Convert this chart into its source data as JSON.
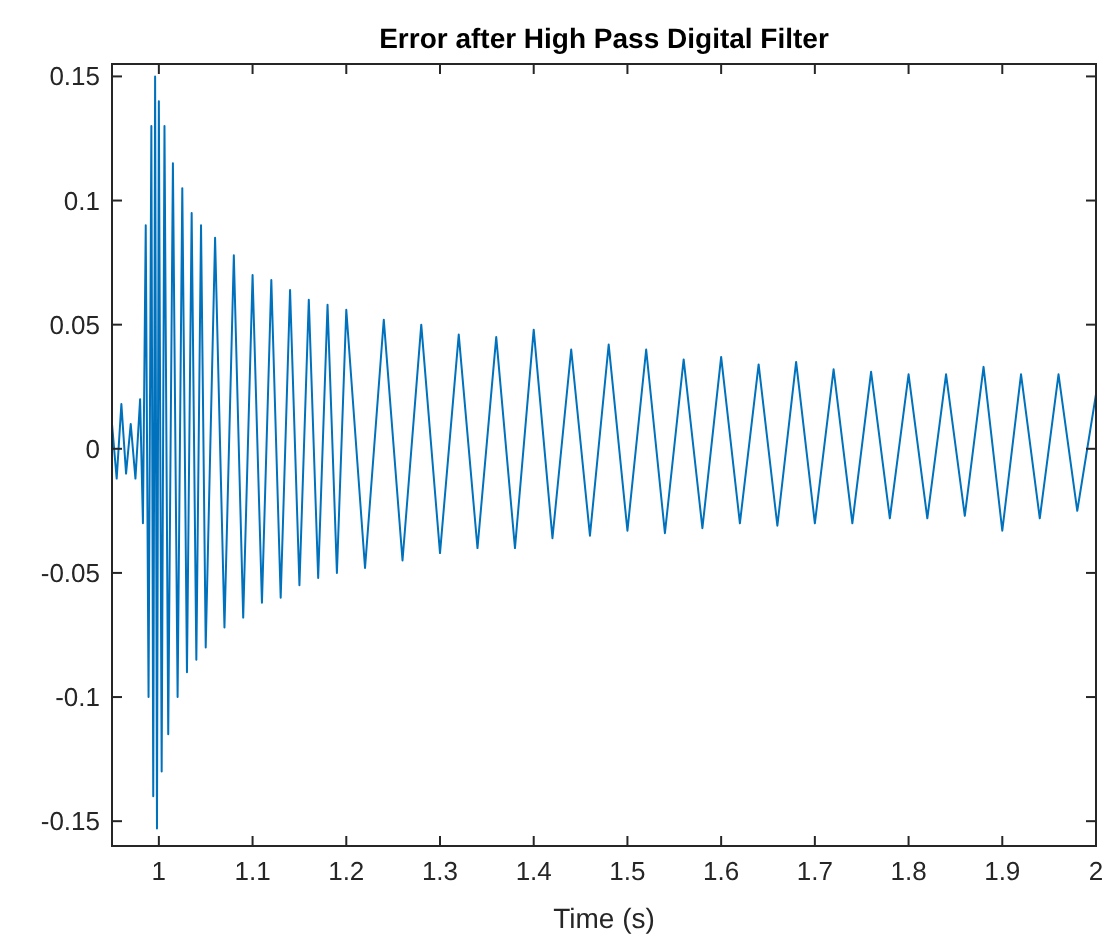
{
  "chart_data": {
    "type": "line",
    "title": "Error after High Pass Digital Filter",
    "xlabel": "Time (s)",
    "x": [
      0.95,
      0.955,
      0.96,
      0.965,
      0.97,
      0.975,
      0.98,
      0.983,
      0.986,
      0.989,
      0.992,
      0.994,
      0.996,
      0.998,
      1.0,
      1.003,
      1.006,
      1.01,
      1.015,
      1.02,
      1.025,
      1.03,
      1.035,
      1.04,
      1.045,
      1.05,
      1.06,
      1.07,
      1.08,
      1.09,
      1.1,
      1.11,
      1.12,
      1.13,
      1.14,
      1.15,
      1.16,
      1.17,
      1.18,
      1.19,
      1.2,
      1.22,
      1.24,
      1.26,
      1.28,
      1.3,
      1.32,
      1.34,
      1.36,
      1.38,
      1.4,
      1.42,
      1.44,
      1.46,
      1.48,
      1.5,
      1.52,
      1.54,
      1.56,
      1.58,
      1.6,
      1.62,
      1.64,
      1.66,
      1.68,
      1.7,
      1.72,
      1.74,
      1.76,
      1.78,
      1.8,
      1.82,
      1.84,
      1.86,
      1.88,
      1.9,
      1.92,
      1.94,
      1.96,
      1.98,
      2.0
    ],
    "series": [
      {
        "color": "#0072bd",
        "values": [
          0.01,
          -0.012,
          0.018,
          -0.01,
          0.01,
          -0.012,
          0.02,
          -0.03,
          0.09,
          -0.1,
          0.13,
          -0.14,
          0.15,
          -0.153,
          0.14,
          -0.13,
          0.13,
          -0.115,
          0.115,
          -0.1,
          0.105,
          -0.09,
          0.095,
          -0.085,
          0.09,
          -0.08,
          0.085,
          -0.072,
          0.078,
          -0.068,
          0.07,
          -0.062,
          0.068,
          -0.06,
          0.064,
          -0.055,
          0.06,
          -0.052,
          0.058,
          -0.05,
          0.056,
          -0.048,
          0.052,
          -0.045,
          0.05,
          -0.042,
          0.046,
          -0.04,
          0.045,
          -0.04,
          0.048,
          -0.036,
          0.04,
          -0.035,
          0.042,
          -0.033,
          0.04,
          -0.034,
          0.036,
          -0.032,
          0.037,
          -0.03,
          0.034,
          -0.031,
          0.035,
          -0.03,
          0.032,
          -0.03,
          0.031,
          -0.028,
          0.03,
          -0.028,
          0.03,
          -0.027,
          0.033,
          -0.033,
          0.03,
          -0.028,
          0.03,
          -0.025,
          0.022
        ]
      }
    ],
    "xlim": [
      0.95,
      2
    ],
    "ylim": [
      -0.16,
      0.155
    ],
    "xticks": [
      1,
      1.1,
      1.2,
      1.3,
      1.4,
      1.5,
      1.6,
      1.7,
      1.8,
      1.9,
      2
    ],
    "yticks": [
      -0.15,
      -0.1,
      -0.05,
      0,
      0.05,
      0.1,
      0.15
    ],
    "grid": false,
    "marker": "none",
    "line_style": "solid"
  }
}
